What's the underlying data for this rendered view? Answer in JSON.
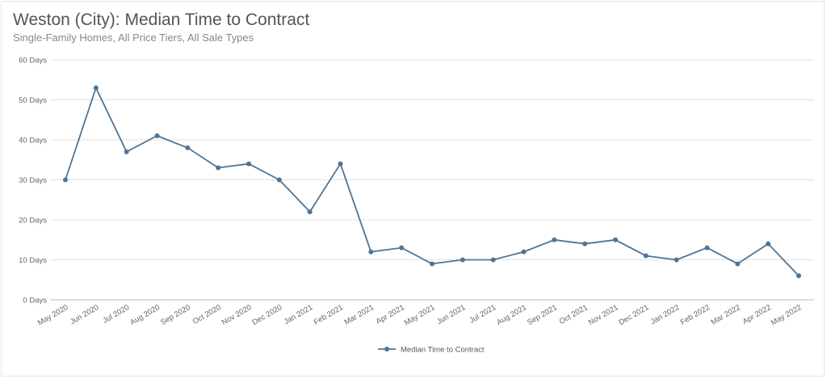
{
  "title": "Weston (City): Median Time to Contract",
  "subtitle": "Single-Family Homes, All Price Tiers, All Sale Types",
  "colors": {
    "series": "#4e7596",
    "grid": "#e1e1e1",
    "axis": "#bdbdbd"
  },
  "chart_data": {
    "type": "line",
    "categories": [
      "May 2020",
      "Jun 2020",
      "Jul 2020",
      "Aug 2020",
      "Sep 2020",
      "Oct 2020",
      "Nov 2020",
      "Dec 2020",
      "Jan 2021",
      "Feb 2021",
      "Mar 2021",
      "Apr 2021",
      "May 2021",
      "Jun 2021",
      "Jul 2021",
      "Aug 2021",
      "Sep 2021",
      "Oct 2021",
      "Nov 2021",
      "Dec 2021",
      "Jan 2022",
      "Feb 2022",
      "Mar 2022",
      "Apr 2022",
      "May 2022"
    ],
    "series": [
      {
        "name": "Median Time to Contract",
        "values": [
          30,
          53,
          37,
          41,
          38,
          33,
          34,
          30,
          22,
          34,
          12,
          13,
          9,
          10,
          10,
          12,
          15,
          14,
          15,
          11,
          10,
          13,
          9,
          14,
          6
        ]
      }
    ],
    "ylim": [
      0,
      60
    ],
    "yticks": [
      0,
      10,
      20,
      30,
      40,
      50,
      60
    ],
    "ytick_labels": [
      "0 Days",
      "10 Days",
      "20 Days",
      "30 Days",
      "40 Days",
      "50 Days",
      "60 Days"
    ],
    "grid": true,
    "legend": "bottom-center"
  }
}
